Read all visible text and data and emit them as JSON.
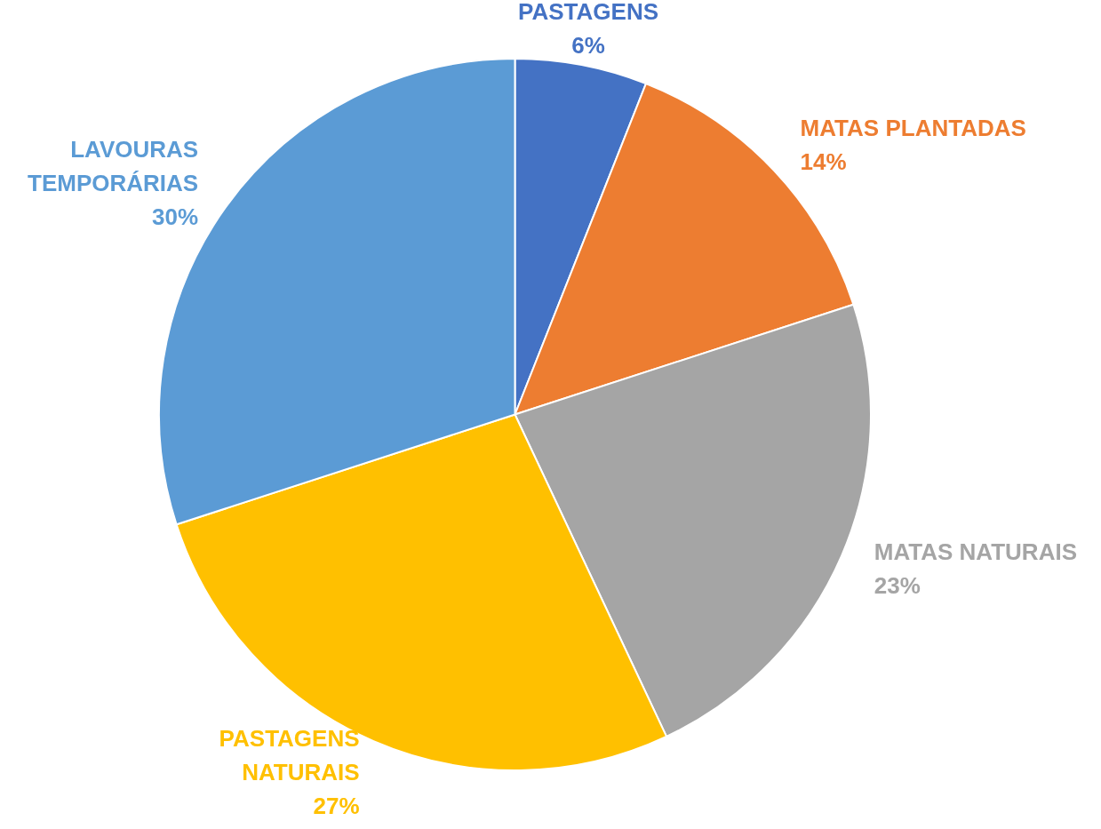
{
  "chart_data": {
    "type": "pie",
    "categories": [
      "PASTAGENS",
      "MATAS PLANTADAS",
      "MATAS NATURAIS",
      "PASTAGENS NATURAIS",
      "LAVOURAS TEMPORÁRIAS"
    ],
    "values": [
      6,
      14,
      23,
      27,
      30
    ],
    "value_labels": [
      "6%",
      "14%",
      "23%",
      "27%",
      "30%"
    ],
    "colors": [
      "#4472c4",
      "#ed7d31",
      "#a5a5a5",
      "#ffc000",
      "#5b9bd5"
    ],
    "legend": false
  }
}
